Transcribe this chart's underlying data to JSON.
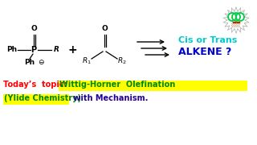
{
  "bg_color": "#ffffff",
  "title_text": "Today’s  topic:",
  "title_color": "#ff0000",
  "highlight_text": "Wittig-Horner  Olefination",
  "highlight_bg": "#ffff00",
  "highlight_color": "#008800",
  "ylide_text": "(Ylide Chemistry)",
  "ylide_color": "#008800",
  "with_text": " with Mechanism.",
  "with_color": "#220099",
  "cis_trans_text": "Cis or Trans",
  "cis_trans_color": "#00cccc",
  "alkene_text": "ALKENE ?",
  "alkene_color": "#0000cc",
  "arrow_color": "#000000",
  "chem_color": "#000000",
  "logo_outer_color": "#aaaaaa",
  "logo_green": "#00cc44",
  "logo_red": "#cc2200"
}
